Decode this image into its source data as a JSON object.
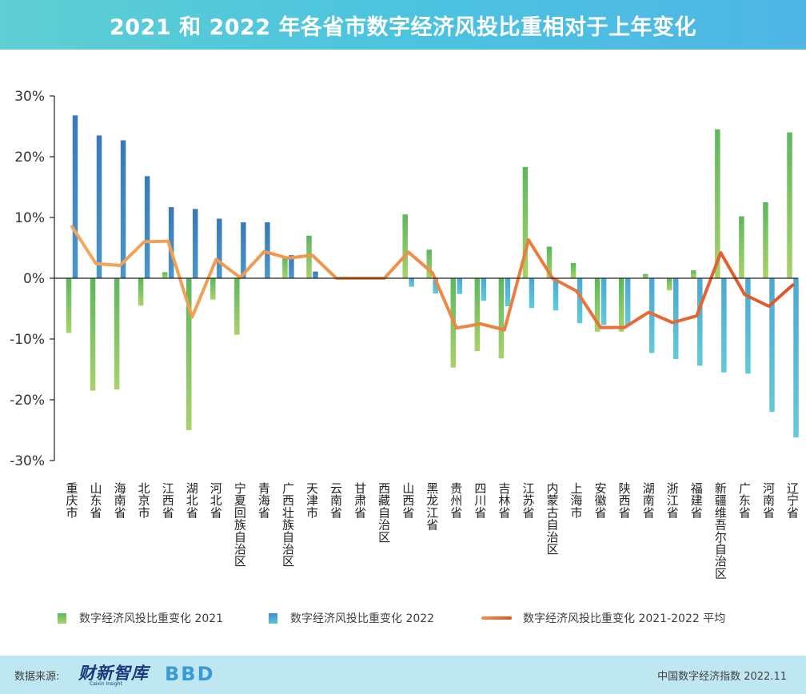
{
  "title": "2021 和 2022 年各省市数字经济风投比重相对于上年变化",
  "legend": {
    "items": [
      {
        "label": "数字经济风投比重变化 2021"
      },
      {
        "label": "数字经济风投比重变化 2022"
      },
      {
        "label": "数字经济风投比重变化 2021-2022 平均"
      }
    ]
  },
  "footer": {
    "source_label": "数据来源:",
    "logo_caixin_text": "财新智库",
    "logo_caixin_sub": "Caixin Insight",
    "logo_bbd_text": "BBD",
    "index_label": "中国数字经济指数 2022.11"
  },
  "colors": {
    "bar_2021_top": "#5cb85c",
    "bar_2021_bottom": "#a8d26a",
    "bar_2022_positive": "#3f7fbf",
    "bar_2022_negative": "#5cc4d6",
    "average_line": "#f0a04a",
    "average_line_late": "#e0602a",
    "axis": "#222222",
    "tick_text": "#333333"
  },
  "chart_data": {
    "type": "bar",
    "categories": [
      "重庆市",
      "山东省",
      "海南省",
      "北京市",
      "江西省",
      "湖北省",
      "河北省",
      "宁夏回族自治区",
      "青海省",
      "广西壮族自治区",
      "天津市",
      "云南省",
      "甘肃省",
      "西藏自治区",
      "山西省",
      "黑龙江省",
      "贵州省",
      "四川省",
      "吉林省",
      "江苏省",
      "内蒙古自治区",
      "上海市",
      "安徽省",
      "陕西省",
      "湖南省",
      "浙江省",
      "福建省",
      "新疆维吾尔自治区",
      "广东省",
      "河南省",
      "辽宁省"
    ],
    "series": [
      {
        "name": "数字经济风投比重变化 2021",
        "type": "bar",
        "values": [
          -9.0,
          -18.5,
          -18.3,
          -4.5,
          1.0,
          -25.0,
          -3.5,
          -9.3,
          0,
          3.3,
          7.0,
          0,
          0,
          0,
          10.5,
          4.7,
          -14.7,
          -12.0,
          -13.2,
          18.3,
          5.2,
          2.5,
          -8.8,
          -8.8,
          0.7,
          -2.0,
          1.3,
          24.5,
          10.2,
          12.5,
          24.0
        ]
      },
      {
        "name": "数字经济风投比重变化 2022",
        "type": "bar",
        "values": [
          26.8,
          23.5,
          22.7,
          16.8,
          11.7,
          11.4,
          9.8,
          9.2,
          9.2,
          3.8,
          1.1,
          0,
          0,
          0,
          -1.4,
          -2.5,
          -2.6,
          -3.7,
          -4.6,
          -4.9,
          -5.3,
          -7.4,
          -7.7,
          -7.8,
          -12.3,
          -13.3,
          -14.4,
          -15.5,
          -15.7,
          -22.0,
          -26.2
        ]
      },
      {
        "name": "数字经济风投比重变化 2021-2022 平均",
        "type": "line",
        "values": [
          8.5,
          2.4,
          2.1,
          6.0,
          6.1,
          -6.4,
          3.1,
          0.1,
          4.4,
          3.3,
          3.8,
          0,
          0,
          0,
          4.3,
          0.9,
          -8.2,
          -7.5,
          -8.5,
          6.3,
          0.0,
          -2.1,
          -8.1,
          -8.1,
          -5.6,
          -7.3,
          -6.2,
          4.2,
          -2.7,
          -4.6,
          -1.1
        ]
      }
    ],
    "ylim": [
      -30,
      30
    ],
    "yticks": [
      "30%",
      "20%",
      "10%",
      "0%",
      "-10%",
      "-20%",
      "-30%"
    ],
    "grid": false,
    "legend_position": "bottom"
  }
}
